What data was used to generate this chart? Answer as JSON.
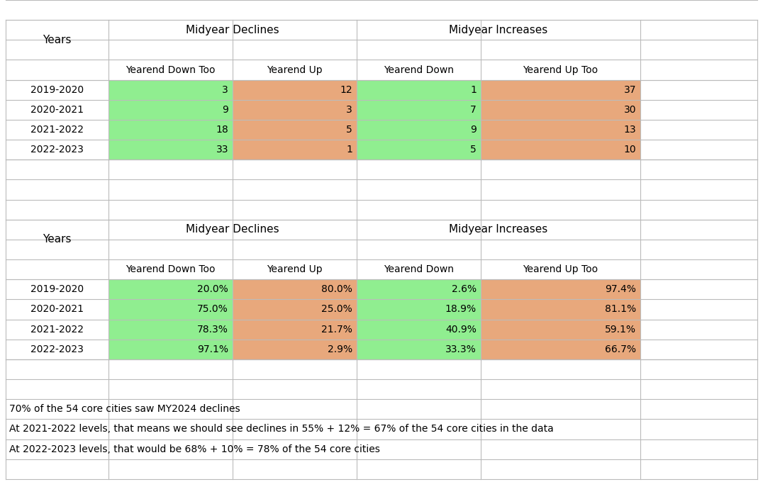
{
  "table1": {
    "rows": [
      [
        "2019-2020",
        "3",
        "12",
        "1",
        "37"
      ],
      [
        "2020-2021",
        "9",
        "3",
        "7",
        "30"
      ],
      [
        "2021-2022",
        "18",
        "5",
        "9",
        "13"
      ],
      [
        "2022-2023",
        "33",
        "1",
        "5",
        "10"
      ]
    ]
  },
  "table2": {
    "rows": [
      [
        "2019-2020",
        "20.0%",
        "80.0%",
        "2.6%",
        "97.4%"
      ],
      [
        "2020-2021",
        "75.0%",
        "25.0%",
        "18.9%",
        "81.1%"
      ],
      [
        "2021-2022",
        "78.3%",
        "21.7%",
        "40.9%",
        "59.1%"
      ],
      [
        "2022-2023",
        "97.1%",
        "2.9%",
        "33.3%",
        "66.7%"
      ]
    ]
  },
  "footnotes": [
    "70% of the 54 core cities saw MY2024 declines",
    "At 2021-2022 levels, that means we should see declines in 55% + 12% = 67% of the 54 core cities in the data",
    "At 2022-2023 levels, that would be 68% + 10% = 78% of the 54 core cities"
  ],
  "colors": {
    "green": "#90EE90",
    "orange": "#E8A87C",
    "grid_line": "#BBBBBB",
    "text_color": "#000000",
    "bg_white": "#FFFFFF"
  },
  "sub_headers": [
    "Yearend Down Too",
    "Yearend Up",
    "Yearend Down",
    "Yearend Up Too"
  ]
}
